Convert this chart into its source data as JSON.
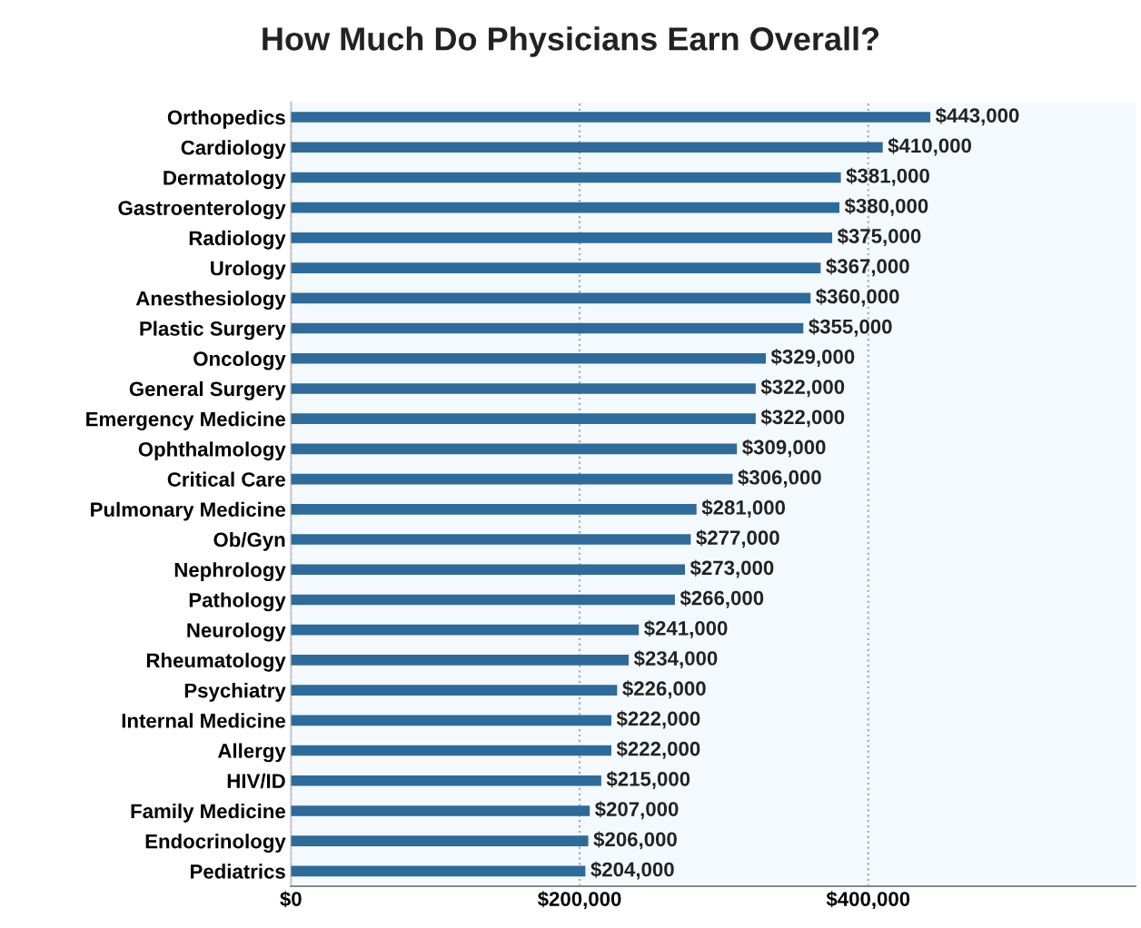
{
  "chart_data": {
    "type": "bar",
    "orientation": "horizontal",
    "title": "How Much Do Physicians Earn Overall?",
    "categories": [
      "Orthopedics",
      "Cardiology",
      "Dermatology",
      "Gastroenterology",
      "Radiology",
      "Urology",
      "Anesthesiology",
      "Plastic Surgery",
      "Oncology",
      "General Surgery",
      "Emergency Medicine",
      "Ophthalmology",
      "Critical Care",
      "Pulmonary Medicine",
      "Ob/Gyn",
      "Nephrology",
      "Pathology",
      "Neurology",
      "Rheumatology",
      "Psychiatry",
      "Internal Medicine",
      "Allergy",
      "HIV/ID",
      "Family Medicine",
      "Endocrinology",
      "Pediatrics"
    ],
    "values": [
      443000,
      410000,
      381000,
      380000,
      375000,
      367000,
      360000,
      355000,
      329000,
      322000,
      322000,
      309000,
      306000,
      281000,
      277000,
      273000,
      266000,
      241000,
      234000,
      226000,
      222000,
      222000,
      215000,
      207000,
      206000,
      204000
    ],
    "value_labels": [
      "$443,000",
      "$410,000",
      "$381,000",
      "$380,000",
      "$375,000",
      "$367,000",
      "$360,000",
      "$355,000",
      "$329,000",
      "$322,000",
      "$322,000",
      "$309,000",
      "$306,000",
      "$281,000",
      "$277,000",
      "$273,000",
      "$266,000",
      "$241,000",
      "$234,000",
      "$226,000",
      "$222,000",
      "$222,000",
      "$215,000",
      "$207,000",
      "$206,000",
      "$204,000"
    ],
    "color": "#2e6a9a",
    "xlim": [
      0,
      585000
    ],
    "xticks": [
      {
        "value": 0,
        "label": "$0"
      },
      {
        "value": 200000,
        "label": "$200,000"
      },
      {
        "value": 400000,
        "label": "$400,000"
      }
    ],
    "grid": "x"
  }
}
